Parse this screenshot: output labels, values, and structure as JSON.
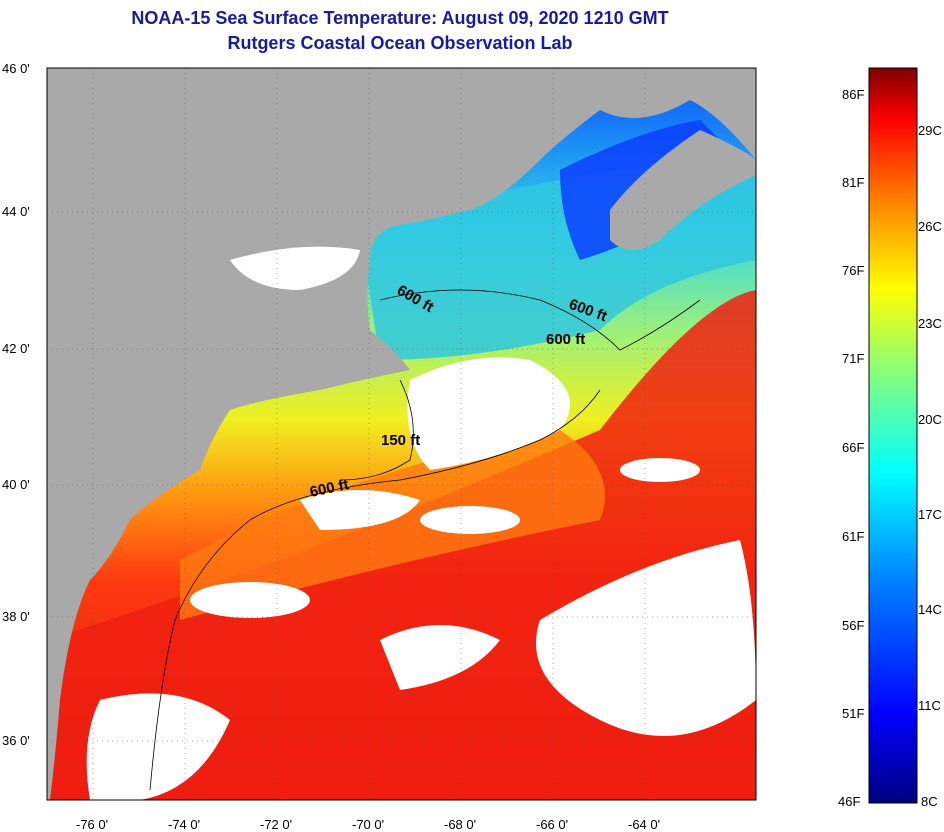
{
  "title": {
    "line1": "NOAA-15 Sea Surface Temperature:  August 09, 2020 1210 GMT",
    "line2": "Rutgers Coastal Ocean Observation Lab"
  },
  "map": {
    "lat_labels": [
      "46 0'",
      "44 0'",
      "42 0'",
      "40 0'",
      "38 0'",
      "36 0'"
    ],
    "lon_labels": [
      "-76 0'",
      "-74 0'",
      "-72 0'",
      "-70 0'",
      "-68 0'",
      "-66 0'",
      "-64 0'"
    ],
    "contour_labels": [
      "600 ft",
      "600 ft",
      "600 ft",
      "150 ft",
      "600 ft"
    ]
  },
  "colorbar": {
    "fahrenheit": [
      "86F",
      "81F",
      "76F",
      "71F",
      "66F",
      "61F",
      "56F",
      "51F",
      "46F"
    ],
    "celsius": [
      "29C",
      "26C",
      "23C",
      "20C",
      "17C",
      "14C",
      "11C",
      "8C"
    ]
  },
  "colors": {
    "land": "#a9a9a9",
    "cloud": "#ffffff",
    "title": "#1a1aa0"
  }
}
